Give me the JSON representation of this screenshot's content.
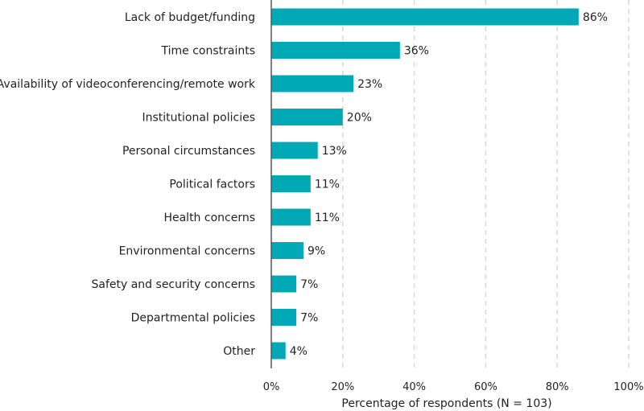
{
  "chart_data": {
    "type": "bar",
    "orientation": "horizontal",
    "categories": [
      "Lack of budget/funding",
      "Time constraints",
      "Availability of videoconferencing/remote work",
      "Institutional policies",
      "Personal circumstances",
      "Political factors",
      "Health concerns",
      "Environmental concerns",
      "Safety and security concerns",
      "Departmental policies",
      "Other"
    ],
    "values": [
      86,
      36,
      23,
      20,
      13,
      11,
      11,
      9,
      7,
      7,
      4
    ],
    "value_labels": [
      "86%",
      "36%",
      "23%",
      "20%",
      "13%",
      "11%",
      "11%",
      "9%",
      "7%",
      "7%",
      "4%"
    ],
    "xlabel": "Percentage of respondents (N = 103)",
    "ylabel": "",
    "xlim": [
      0,
      100
    ],
    "x_ticks": [
      "0%",
      "20%",
      "40%",
      "60%",
      "80%",
      "100%"
    ],
    "x_tick_values": [
      0,
      20,
      40,
      60,
      80,
      100
    ],
    "grid": "vertical dashed",
    "bar_color": "#00A9B5",
    "grid_color": "#d9d9d9"
  }
}
